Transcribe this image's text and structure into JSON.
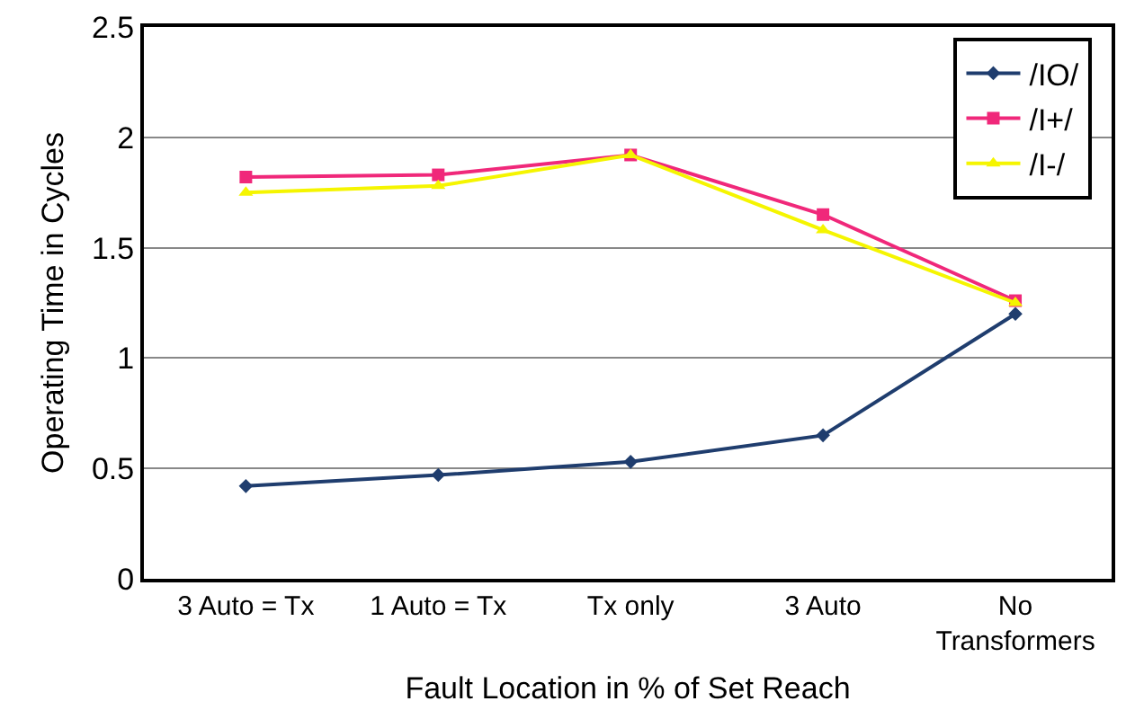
{
  "chart_data": {
    "type": "line",
    "xlabel": "Fault Location in % of Set Reach",
    "ylabel": "Operating Time in Cycles",
    "categories": [
      "3 Auto = Tx",
      "1 Auto = Tx",
      "Tx only",
      "3 Auto",
      "No\nTransformers"
    ],
    "series": [
      {
        "name": "/IO/",
        "color": "#1f3d6e",
        "marker": "diamond",
        "values": [
          0.42,
          0.47,
          0.53,
          0.65,
          1.2
        ]
      },
      {
        "name": "/I+/",
        "color": "#f0287a",
        "marker": "square",
        "values": [
          1.82,
          1.83,
          1.92,
          1.65,
          1.26
        ]
      },
      {
        "name": "/I-/",
        "color": "#f5f500",
        "marker": "triangle",
        "values": [
          1.75,
          1.78,
          1.92,
          1.58,
          1.25
        ]
      }
    ],
    "ylim": [
      0,
      2.5
    ],
    "yticks": [
      0,
      0.5,
      1,
      1.5,
      2,
      2.5
    ],
    "grid": "y",
    "legend": "top right",
    "line_style": "solid"
  }
}
